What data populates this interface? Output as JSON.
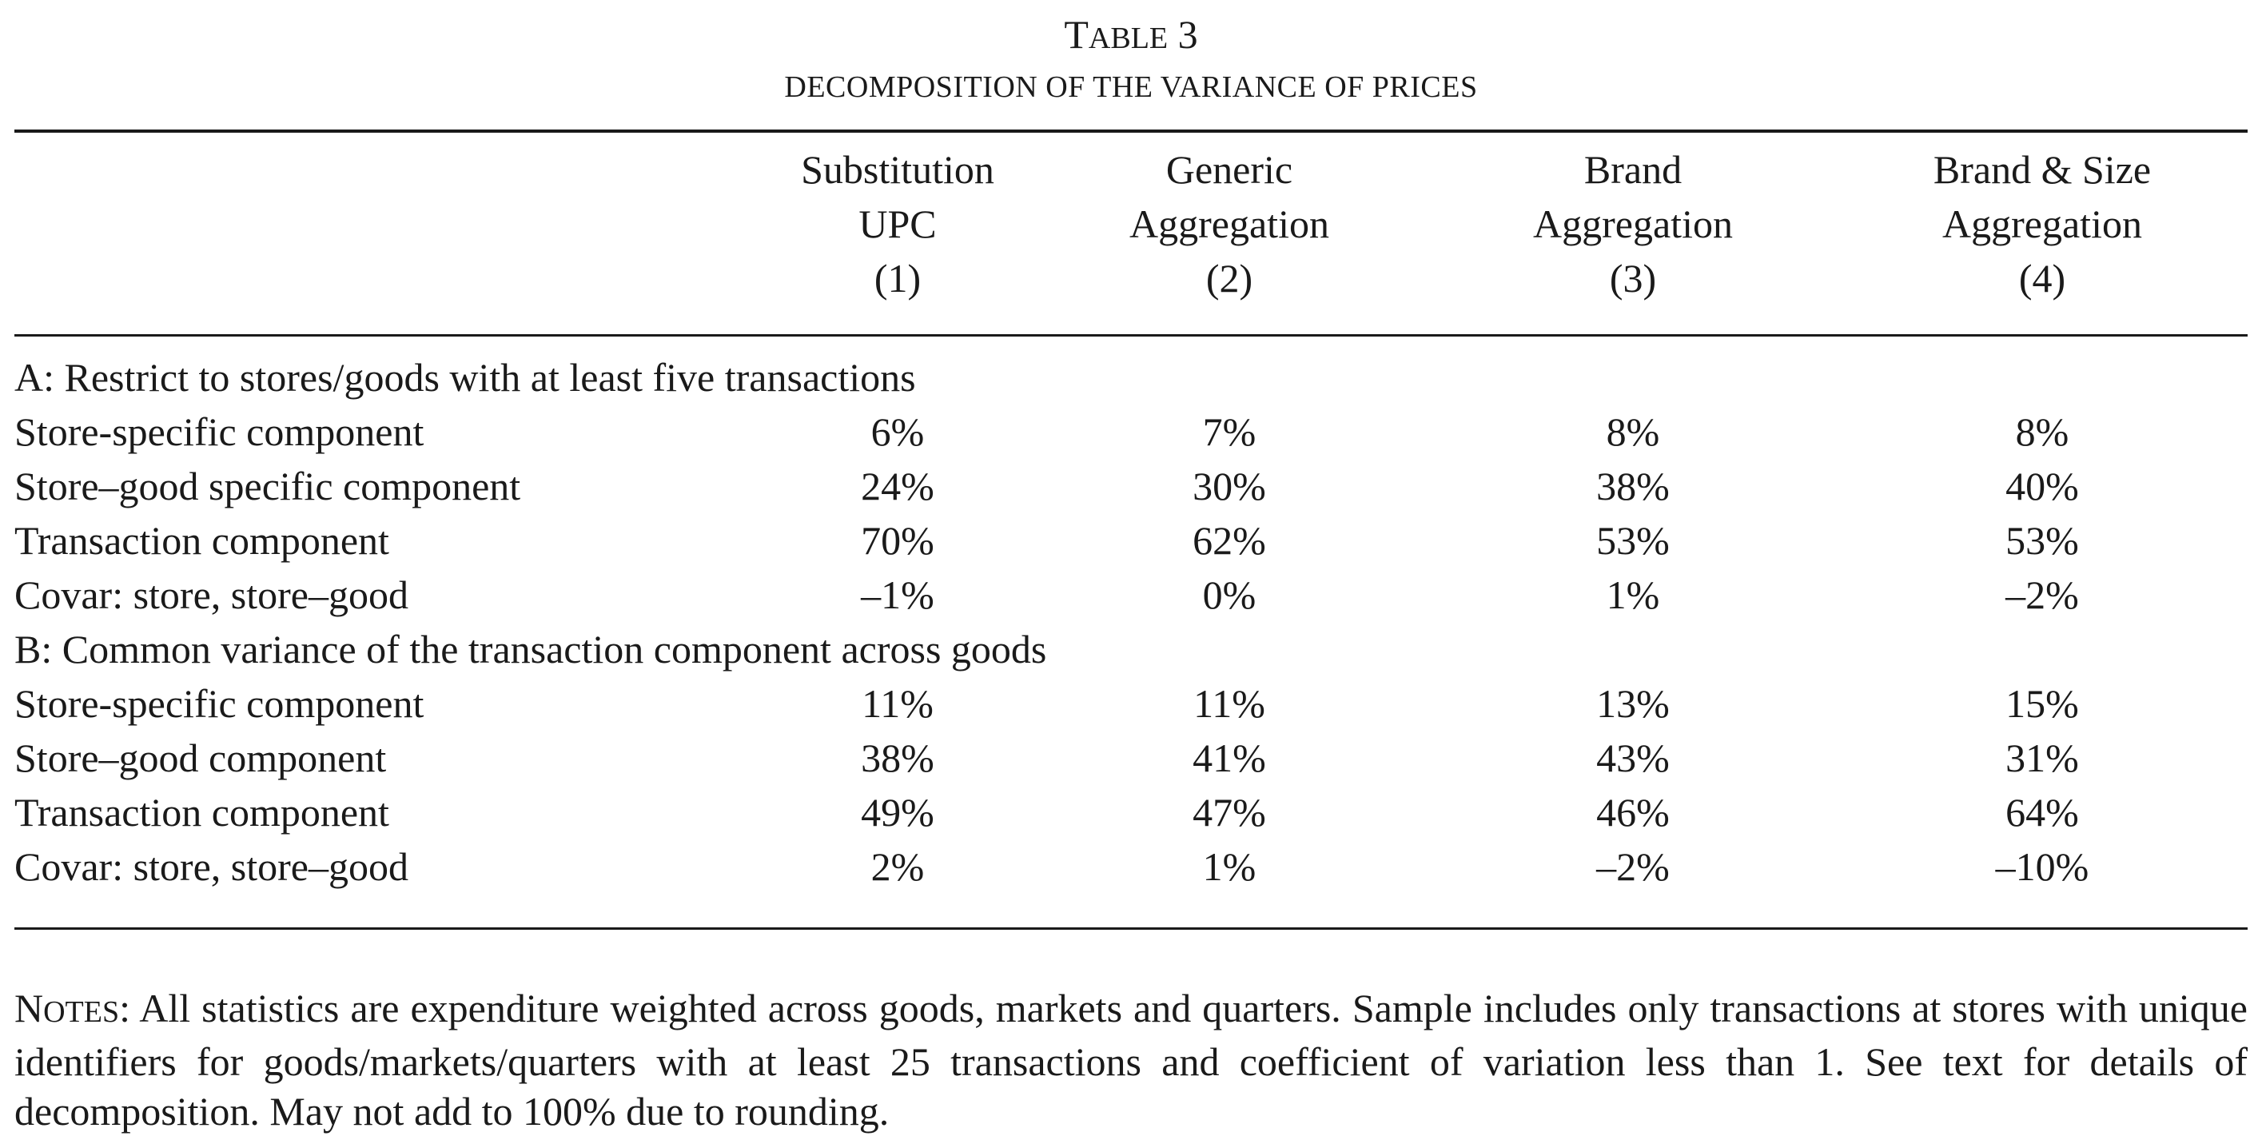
{
  "table": {
    "title_first": "T",
    "title_rest": "ABLE",
    "title_number": " 3",
    "subtitle": "DECOMPOSITION OF THE VARIANCE OF PRICES",
    "columns": [
      {
        "line1": "Substitution",
        "line2": "UPC",
        "line3": "(1)"
      },
      {
        "line1": "Generic",
        "line2": "Aggregation",
        "line3": "(2)"
      },
      {
        "line1": "Brand",
        "line2": "Aggregation",
        "line3": "(3)"
      },
      {
        "line1": "Brand & Size",
        "line2": "Aggregation",
        "line3": "(4)"
      }
    ],
    "panel_a": {
      "title": "A: Restrict to stores/goods with at least five transactions",
      "rows": [
        {
          "label": "Store-specific component",
          "values": [
            "6%",
            "7%",
            "8%",
            "8%"
          ]
        },
        {
          "label": "Store–good specific component",
          "values": [
            "24%",
            "30%",
            "38%",
            "40%"
          ]
        },
        {
          "label": "Transaction component",
          "values": [
            "70%",
            "62%",
            "53%",
            "53%"
          ]
        },
        {
          "label": "Covar: store, store–good",
          "values": [
            "–1%",
            "0%",
            "1%",
            "–2%"
          ]
        }
      ]
    },
    "panel_b": {
      "title": "B: Common variance of the transaction component across goods",
      "rows": [
        {
          "label": "Store-specific component",
          "values": [
            "11%",
            "11%",
            "13%",
            "15%"
          ]
        },
        {
          "label": "Store–good component",
          "values": [
            "38%",
            "41%",
            "43%",
            "31%"
          ]
        },
        {
          "label": "Transaction component",
          "values": [
            "49%",
            "47%",
            "46%",
            "64%"
          ]
        },
        {
          "label": "Covar: store, store–good",
          "values": [
            "2%",
            "1%",
            "–2%",
            "–10%"
          ]
        }
      ]
    },
    "notes": {
      "lead_first": "N",
      "lead_rest": "OTES",
      "text": ": All statistics are expenditure weighted across goods, markets and quarters. Sample includes only transactions at stores with unique identifiers for goods/markets/quarters with at least 25 transactions and coefficient of variation less than 1. See text for details of decomposition. May not add to 100% due to rounding."
    }
  }
}
